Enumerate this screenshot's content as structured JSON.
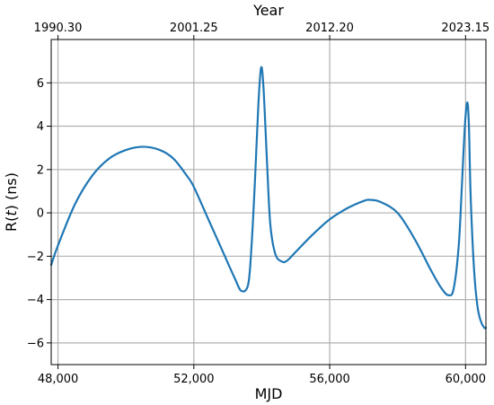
{
  "chart_data": {
    "type": "line",
    "xlabel": "MJD",
    "ylabel_parts": {
      "prefix": "R(",
      "var": "t",
      "suffix": ") (ns)"
    },
    "top_axis_label": "Year",
    "xlim": [
      47800,
      60600
    ],
    "ylim": [
      -7,
      8
    ],
    "x_ticks": [
      48000,
      52000,
      56000,
      60000
    ],
    "x_tick_labels": [
      "48,000",
      "52,000",
      "56,000",
      "60,000"
    ],
    "y_ticks": [
      -6,
      -4,
      -2,
      0,
      2,
      4,
      6
    ],
    "y_tick_labels": [
      "−6",
      "−4",
      "−2",
      "0",
      "2",
      "4",
      "6"
    ],
    "top_ticks_mjd": [
      48000,
      52000,
      56000,
      60000
    ],
    "top_tick_labels": [
      "1990.30",
      "2001.25",
      "2012.20",
      "2023.15"
    ],
    "grid": true,
    "line_color": "#1f77b4",
    "series": [
      {
        "x": [
          47800,
          48000,
          48500,
          49000,
          49500,
          50000,
          50500,
          51000,
          51400,
          51800,
          52000,
          52400,
          52800,
          53200,
          53400,
          53600,
          53700,
          53800,
          53900,
          53980,
          54050,
          54150,
          54250,
          54400,
          54600,
          54750,
          55000,
          55500,
          56000,
          56500,
          57000,
          57200,
          57500,
          58000,
          58500,
          59000,
          59300,
          59500,
          59650,
          59800,
          59900,
          59980,
          60050,
          60100,
          60150,
          60250,
          60350,
          60450,
          60550,
          60600
        ],
        "y": [
          -2.4,
          -1.5,
          0.4,
          1.7,
          2.5,
          2.9,
          3.05,
          2.9,
          2.5,
          1.7,
          1.2,
          -0.2,
          -1.6,
          -3.0,
          -3.6,
          -3.3,
          -1.5,
          1.5,
          5.0,
          6.7,
          5.8,
          2.5,
          -0.5,
          -1.9,
          -2.25,
          -2.2,
          -1.8,
          -1.0,
          -0.3,
          0.2,
          0.55,
          0.6,
          0.5,
          0.0,
          -1.2,
          -2.7,
          -3.5,
          -3.8,
          -3.5,
          -1.5,
          1.5,
          4.0,
          5.1,
          4.0,
          0.8,
          -2.6,
          -4.3,
          -5.0,
          -5.3,
          -5.3
        ]
      }
    ]
  }
}
